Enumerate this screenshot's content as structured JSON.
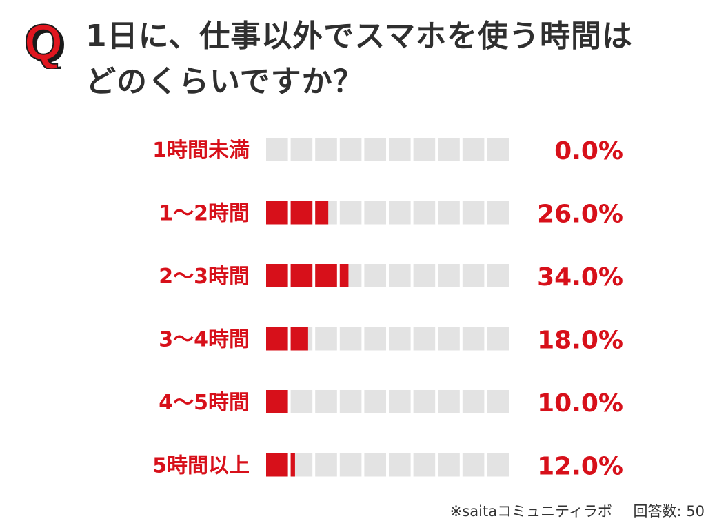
{
  "title_lines": [
    "1日に、仕事以外でスマホを使う時間は",
    "どのくらいですか？"
  ],
  "badge_letter": "Q",
  "colors": {
    "accent": "#d7101a",
    "track": "#e3e3e3",
    "title": "#2f2f2f",
    "badge_fill": "#e0161f",
    "badge_shadow": "#1a1a1a"
  },
  "chart_data": {
    "type": "bar",
    "orientation": "horizontal",
    "categories": [
      "1時間未満",
      "1〜2時間",
      "2〜3時間",
      "3〜4時間",
      "4〜5時間",
      "5時間以上"
    ],
    "values": [
      0.0,
      26.0,
      34.0,
      18.0,
      10.0,
      12.0
    ],
    "value_labels": [
      "0.0%",
      "26.0%",
      "34.0%",
      "18.0%",
      "10.0%",
      "12.0%"
    ],
    "xlim": [
      0,
      100
    ],
    "segments": 10
  },
  "footnote": {
    "source": "※saitaコミュニティラボ",
    "respondents": "回答数: 50"
  }
}
